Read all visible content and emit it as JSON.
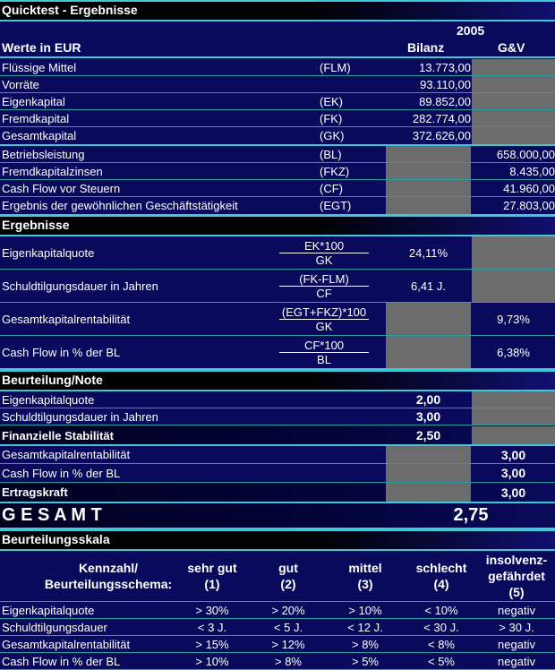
{
  "title": "Quicktest - Ergebnisse",
  "header": {
    "year": "2005",
    "units": "Werte in EUR",
    "col_bilanz": "Bilanz",
    "col_guv": "G&V"
  },
  "inputs": [
    {
      "label": "Flüssige Mittel",
      "abbr": "(FLM)",
      "bilanz": "13.773,00",
      "guv": null
    },
    {
      "label": "Vorräte",
      "abbr": "",
      "bilanz": "93.110,00",
      "guv": null
    },
    {
      "label": "Eigenkapital",
      "abbr": "(EK)",
      "bilanz": "89.852,00",
      "guv": null
    },
    {
      "label": "Fremdkapital",
      "abbr": "(FK)",
      "bilanz": "282.774,00",
      "guv": null
    },
    {
      "label": "Gesamtkapital",
      "abbr": "(GK)",
      "bilanz": "372.626,00",
      "guv": null
    },
    {
      "label": "Betriebsleistung",
      "abbr": "(BL)",
      "bilanz": null,
      "guv": "658.000,00"
    },
    {
      "label": "Fremdkapitalzinsen",
      "abbr": "(FKZ)",
      "bilanz": null,
      "guv": "8.435,00"
    },
    {
      "label": "Cash Flow vor Steuern",
      "abbr": "(CF)",
      "bilanz": null,
      "guv": "41.960,00"
    },
    {
      "label": "Ergebnis der gewöhnlichen Geschäftstätigkeit",
      "abbr": "(EGT)",
      "bilanz": null,
      "guv": "27.803,00"
    }
  ],
  "results_title": "Ergebnisse",
  "results": [
    {
      "label": "Eigenkapitalquote",
      "numerator": "EK*100",
      "denominator": "GK",
      "bilanz": "24,11%",
      "guv": null
    },
    {
      "label": "Schuldtilgungsdauer in Jahren",
      "numerator": "(FK-FLM)",
      "denominator": "CF",
      "bilanz": "6,41 J.",
      "guv": null
    },
    {
      "label": "Gesamtkapitalrentabilität",
      "numerator": "(EGT+FKZ)*100",
      "denominator": "GK",
      "bilanz": null,
      "guv": "9,73%"
    },
    {
      "label": "Cash Flow in % der BL",
      "numerator": "CF*100",
      "denominator": "BL",
      "bilanz": null,
      "guv": "6,38%"
    }
  ],
  "rating_title": "Beurteilung/Note",
  "rating": [
    {
      "label": "Eigenkapitalquote",
      "bilanz": "2,00",
      "guv": null,
      "summary": false
    },
    {
      "label": "Schuldtilgungsdauer in Jahren",
      "bilanz": "3,00",
      "guv": null,
      "summary": false
    },
    {
      "label": "Finanzielle Stabilität",
      "bilanz": "2,50",
      "guv": null,
      "summary": true
    },
    {
      "label": "Gesamtkapitalrentabilität",
      "bilanz": null,
      "guv": "3,00",
      "summary": false
    },
    {
      "label": "Cash Flow in % der BL",
      "bilanz": null,
      "guv": "3,00",
      "summary": false
    },
    {
      "label": "Ertragskraft",
      "bilanz": null,
      "guv": "3,00",
      "summary": true
    }
  ],
  "total": {
    "label": "G E S A M T",
    "value": "2,75"
  },
  "scale_title": "Beurteilungsskala",
  "scale": {
    "headers": [
      "Kennzahl/\nBeurteilungsschema:",
      "sehr gut\n(1)",
      "gut\n(2)",
      "mittel\n(3)",
      "schlecht\n(4)",
      "insolvenz-\ngefährdet\n(5)"
    ],
    "rows": [
      [
        "Eigenkapitalquote",
        "> 30%",
        "> 20%",
        "> 10%",
        "< 10%",
        "negativ"
      ],
      [
        "Schuldtilgungsdauer",
        "< 3 J.",
        "< 5 J.",
        "< 12 J.",
        "< 30 J.",
        "> 30 J."
      ],
      [
        "Gesamtkapitalrentabilität",
        "> 15%",
        "> 12%",
        "> 8%",
        "< 8%",
        "negativ"
      ],
      [
        "Cash Flow in % der BL",
        "> 10%",
        "> 8%",
        "> 5%",
        "< 5%",
        "negativ"
      ]
    ]
  },
  "colors": {
    "background": "#0a0a5c",
    "empty_cell": "#6c6c6c",
    "separator": "#40c8d8"
  }
}
